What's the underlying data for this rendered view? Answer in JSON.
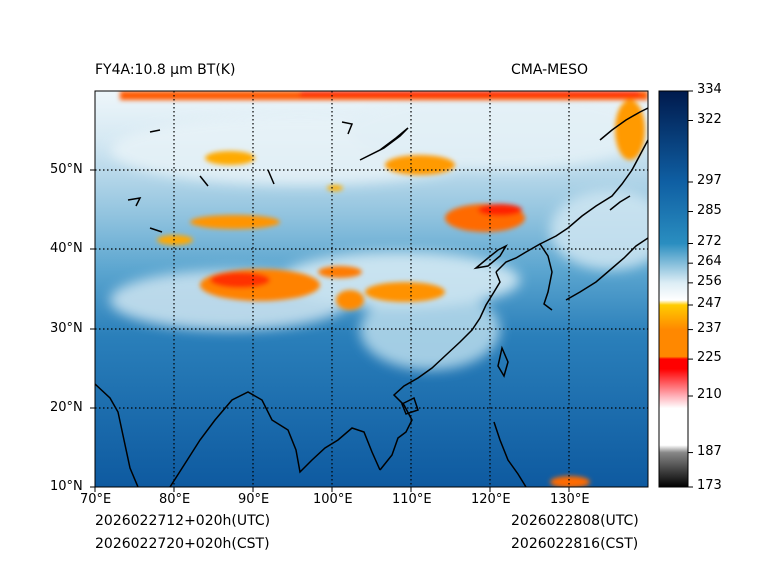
{
  "header": {
    "product": "FY4A:10.8 µm BT(K)",
    "model": "CMA-MESO"
  },
  "footer": {
    "init_utc": "2026022712+020h(UTC)",
    "init_cst": "2026022720+020h(CST)",
    "valid_utc": "2026022808(UTC)",
    "valid_cst": "2026022816(CST)"
  },
  "map": {
    "lon_range": [
      70,
      140
    ],
    "lat_range": [
      10,
      60
    ],
    "lon_ticks": [
      70,
      80,
      90,
      100,
      110,
      120,
      130
    ],
    "lat_ticks": [
      10,
      20,
      30,
      40,
      50
    ],
    "lon_labels": [
      "70°E",
      "80°E",
      "90°E",
      "100°E",
      "110°E",
      "120°E",
      "130°E"
    ],
    "lat_labels": [
      "10°N",
      "20°N",
      "30°N",
      "40°N",
      "50°N"
    ]
  },
  "colorbar": {
    "min": 173,
    "max": 334,
    "ticks": [
      173,
      187,
      210,
      225,
      237,
      247,
      256,
      264,
      272,
      285,
      297,
      322,
      334
    ],
    "tick_labels": [
      "173",
      "187",
      "210",
      "225",
      "237",
      "247",
      "256",
      "264",
      "272",
      "285",
      "297",
      "322",
      "334"
    ],
    "colors": {
      "black": "#000000",
      "gray": "#888888",
      "white": "#ffffff",
      "pink": "#ffb0b8",
      "red": "#ff0000",
      "orange": "#ff8800",
      "yellow": "#ffcc00",
      "light_blue": "#dcedf5",
      "mid_blue": "#2a8ec0",
      "blue": "#0f5fa3",
      "navy": "#001a4d"
    }
  }
}
